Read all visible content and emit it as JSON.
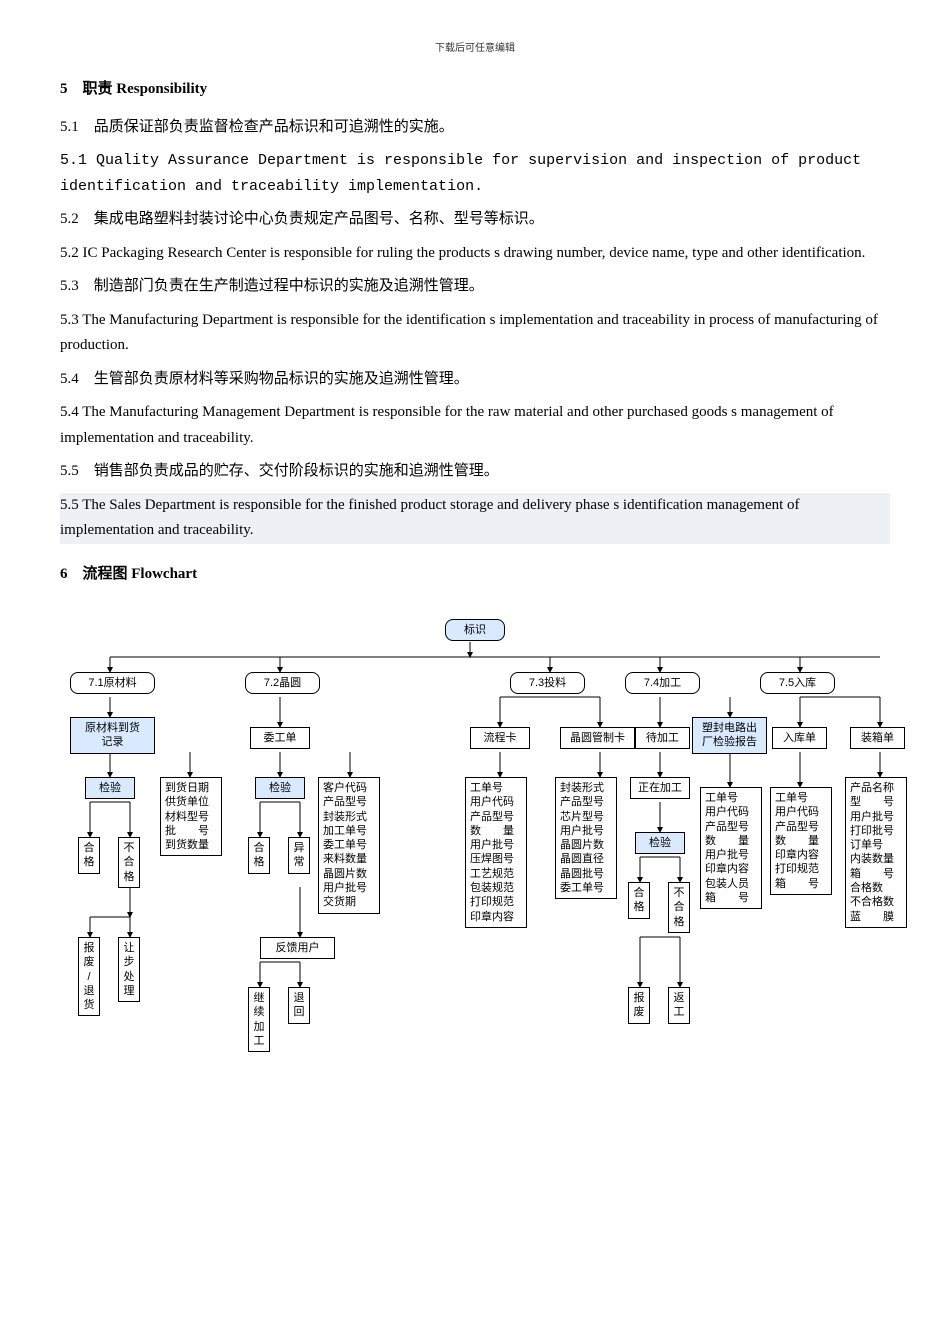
{
  "header_note": "下载后可任意编辑",
  "s5_title": "5　职责 Responsibility",
  "s51_cn": "5.1　品质保证部负责监督检查产品标识和可追溯性的实施。",
  "s51_en": "5.1 Quality Assurance Department is responsible for supervision and inspection of product identification and traceability implementation.",
  "s52_cn": "5.2　集成电路塑料封装讨论中心负责规定产品图号、名称、型号等标识。",
  "s52_en": "5.2  IC Packaging Research Center is responsible for ruling the products s drawing number,  device name, type and other identification.",
  "s53_cn": "5.3　制造部门负责在生产制造过程中标识的实施及追溯性管理。",
  "s53_en": "5.3  The Manufacturing Department is responsible for the identification s implementation and traceability in process of manufacturing of production.",
  "s54_cn": "5.4　生管部负责原材料等采购物品标识的实施及追溯性管理。",
  "s54_en": "5.4  The Manufacturing Management Department is responsible for the raw material and other purchased goods s management of implementation and traceability.",
  "s55_cn": "5.5　销售部负责成品的贮存、交付阶段标识的实施和追溯性管理。",
  "s55_en": " 5.5  The Sales Department is responsible for the finished product storage and delivery phase s identification management of implementation and traceability.",
  "s6_title": "6　流程图  Flowchart",
  "fc": {
    "top": "标识",
    "row1": {
      "a": "7.1原材料",
      "b": "7.2晶圆",
      "c": "7.3投料",
      "d": "7.4加工",
      "e": "7.5入库"
    },
    "row2": {
      "a": "原材料到货\n记录",
      "b": "委工单",
      "c1": "流程卡",
      "c2": "晶圆管制卡",
      "d": "待加工",
      "d2": "塑封电路出\n厂检验报告",
      "e1": "入库单",
      "e2": "装箱单"
    },
    "row3": {
      "a": "检验",
      "a2": "到货日期\n供货单位\n材料型号\n批　　号\n到货数量",
      "b": "检验",
      "b2": "客户代码\n产品型号\n封装形式\n加工单号\n委工单号\n来料数量\n晶圆片数\n用户批号\n交货期",
      "c1": "工单号\n用户代码\n产品型号\n数　　量\n用户批号\n压焊图号\n工艺规范\n包装规范\n打印规范\n印章内容",
      "c2": "封装形式\n产品型号\n芯片型号\n用户批号\n晶圆片数\n晶圆直径\n晶圆批号\n委工单号",
      "d": "正在加工",
      "d2": "工单号\n用户代码\n产品型号\n数　　量\n用户批号\n印章内容\n包装人员\n箱　　号",
      "d3": "工单号\n用户代码\n产品型号\n数　　量\n印章内容\n打印规范\n箱　　号",
      "e2": "产品名称\n型　　号\n用户批号\n打印批号\n订单号\n内装数量\n箱　　号\n合格数\n不合格数\n蓝　　膜"
    },
    "row4": {
      "a1": "合\n格",
      "a2": "不\n合\n格",
      "b1": "合\n格",
      "b2": "异\n常",
      "d0": "检验",
      "d1": "合\n格",
      "d2": "不\n合\n格"
    },
    "row5": {
      "a1": "报\n废\n/\n退\n货",
      "a2": "让\n步\n处\n理",
      "b": "反馈用户",
      "b1": "继\n续\n加\n工",
      "b2": "退\n回",
      "d1": "报\n废",
      "d2": "返\n工"
    }
  }
}
